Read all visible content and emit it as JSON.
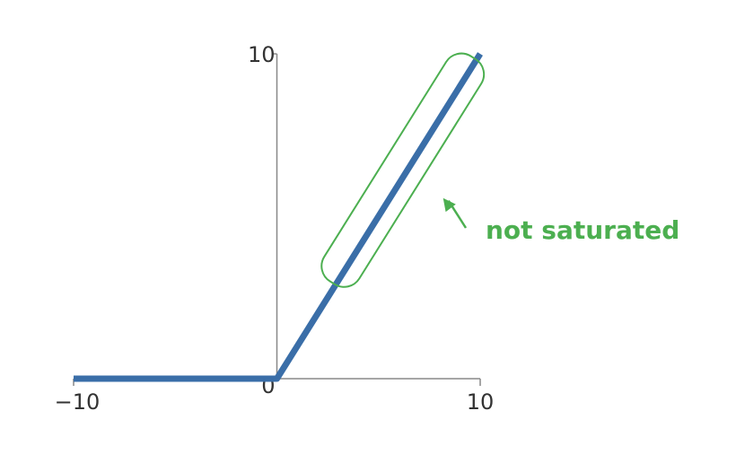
{
  "chart_data": {
    "type": "line",
    "title": "",
    "xlabel": "",
    "ylabel": "",
    "xlim": [
      -10,
      10
    ],
    "ylim": [
      0,
      10
    ],
    "x_ticks": [
      -10,
      10
    ],
    "y_ticks": [
      10
    ],
    "origin_label": "0",
    "tick_labels": {
      "x_min": "−10",
      "x_max": "10",
      "y_max": "10",
      "origin": "0"
    },
    "series": [
      {
        "x": [
          -10,
          0,
          10
        ],
        "y": [
          0,
          0,
          10
        ],
        "color": "#3a6ea8"
      }
    ],
    "annotation": {
      "text": "not saturated",
      "color": "#4caf50",
      "region_x": [
        3,
        10
      ],
      "region_y": [
        3,
        10
      ]
    },
    "grid": false,
    "legend": "none"
  }
}
